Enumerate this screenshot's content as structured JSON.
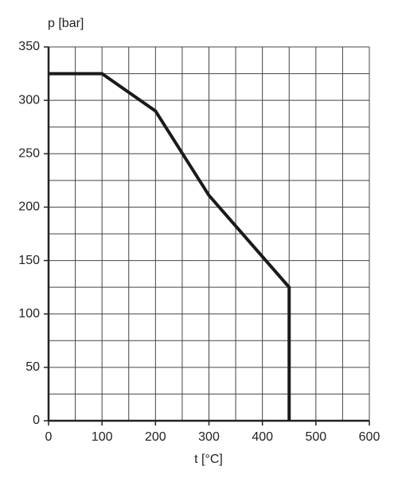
{
  "chart_data": {
    "type": "line",
    "y_label": "p [bar]",
    "x_label": "t [°C]",
    "series": [
      {
        "name": "p",
        "color": "#1a1a1a",
        "x": [
          0,
          100,
          200,
          300,
          450,
          450
        ],
        "values": [
          325,
          325,
          290,
          211,
          125,
          0
        ]
      }
    ],
    "xlim": [
      0,
      600
    ],
    "xticks": [
      0,
      100,
      200,
      300,
      400,
      500,
      600
    ],
    "ylim": [
      0,
      350
    ],
    "yticks": [
      0,
      50,
      100,
      150,
      200,
      250,
      300,
      350
    ],
    "grid": true
  }
}
